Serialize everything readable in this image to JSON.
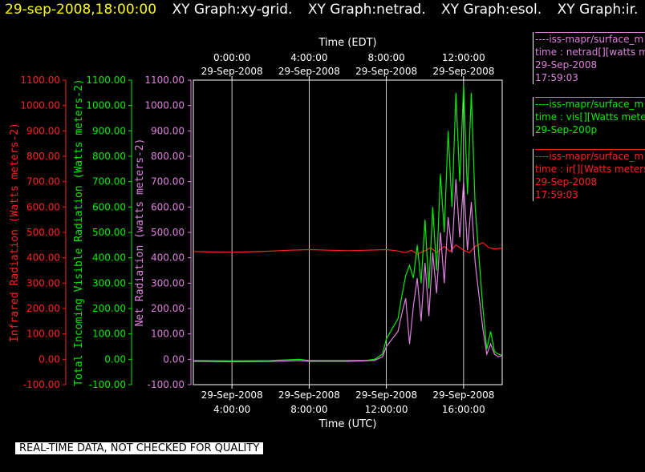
{
  "title_bar": {
    "timestamp": "29-sep-2008,18:00:00",
    "graphs": [
      "XY Graph:xy-grid.",
      "XY Graph:netrad.",
      "XY Graph:esol.",
      "XY Graph:ir."
    ]
  },
  "legend": [
    {
      "line1": "----iss-mapr/surface_m",
      "line2": "time : netrad[][watts m",
      "line3": "29-Sep-2008",
      "line4": "17:59:03",
      "color": "#e080e0"
    },
    {
      "line1": "----iss-mapr/surface_m",
      "line2": "time : vis[][Watts mete",
      "line3": "29-Sep-200p",
      "line4": "",
      "color": "#00ee00"
    },
    {
      "line1": "----iss-mapr/surface_m",
      "line2": "time : ir[][Watts meters",
      "line3": "29-Sep-2008",
      "line4": "17:59:03",
      "color": "#ff2020"
    }
  ],
  "quality_note": "REAL-TIME DATA, NOT CHECKED FOR QUALITY",
  "chart_data": {
    "type": "line",
    "xlabel": "Time (UTC)",
    "top_xlabel": "Time (EDT)",
    "x_domain_hours_utc": [
      2.0,
      18.0
    ],
    "bottom_ticks": [
      {
        "x": 4,
        "line1": "29-Sep-2008",
        "line2": "4:00:00"
      },
      {
        "x": 8,
        "line1": "29-Sep-2008",
        "line2": "8:00:00"
      },
      {
        "x": 12,
        "line1": "29-Sep-2008",
        "line2": "12:00:00"
      },
      {
        "x": 16,
        "line1": "29-Sep-2008",
        "line2": "16:00:00"
      }
    ],
    "top_ticks": [
      {
        "x": 4,
        "line1": "0:00:00",
        "line2": "29-Sep-2008"
      },
      {
        "x": 8,
        "line1": "4:00:00",
        "line2": "29-Sep-2008"
      },
      {
        "x": 12,
        "line1": "8:00:00",
        "line2": "29-Sep-2008"
      },
      {
        "x": 16,
        "line1": "12:00:00",
        "line2": "29-Sep-2008"
      }
    ],
    "ylim": [
      -100,
      1100
    ],
    "y_ticks": [
      -100,
      0,
      100,
      200,
      300,
      400,
      500,
      600,
      700,
      800,
      900,
      1000,
      1100
    ],
    "axes": [
      {
        "label": "Infrared Radiation (Watts meters-2)",
        "color": "#ff2020",
        "tick_labels": [
          "-100.00",
          "0.00",
          "100.00",
          "200.00",
          "300.00",
          "400.00",
          "500.00",
          "600.00",
          "700.00",
          "800.00",
          "900.00",
          "1000.00",
          "1100.00"
        ]
      },
      {
        "label": "Total Incoming Visible Radiation (Watts meters-2)",
        "color": "#00ee00",
        "tick_labels": [
          "-100.00",
          "0.00",
          "100.00",
          "200.00",
          "300.00",
          "400.00",
          "500.00",
          "600.00",
          "700.00",
          "800.00",
          "900.00",
          "1000.00",
          "1100.00"
        ]
      },
      {
        "label": "Net Radiation (watts meters-2)",
        "color": "#e080e0",
        "tick_labels": [
          "-100.00",
          "0.00",
          "100.00",
          "200.00",
          "300.00",
          "400.00",
          "500.00",
          "600.00",
          "700.00",
          "800.00",
          "900.00",
          "1000.00",
          "1100.00"
        ]
      }
    ],
    "grid": true,
    "series": [
      {
        "name": "ir",
        "color": "#ff2020",
        "points": [
          [
            2.0,
            425
          ],
          [
            3.0,
            423
          ],
          [
            4.0,
            422
          ],
          [
            5.0,
            424
          ],
          [
            6.0,
            426
          ],
          [
            7.0,
            430
          ],
          [
            8.0,
            432
          ],
          [
            9.0,
            430
          ],
          [
            10.0,
            428
          ],
          [
            11.0,
            430
          ],
          [
            12.0,
            432
          ],
          [
            12.5,
            428
          ],
          [
            13.0,
            420
          ],
          [
            13.3,
            430
          ],
          [
            13.6,
            415
          ],
          [
            14.0,
            428
          ],
          [
            14.3,
            440
          ],
          [
            14.6,
            420
          ],
          [
            15.0,
            445
          ],
          [
            15.3,
            425
          ],
          [
            15.6,
            450
          ],
          [
            16.0,
            430
          ],
          [
            16.3,
            420
          ],
          [
            16.6,
            445
          ],
          [
            17.0,
            460
          ],
          [
            17.3,
            440
          ],
          [
            17.6,
            435
          ],
          [
            18.0,
            438
          ]
        ]
      },
      {
        "name": "vis",
        "color": "#00ee00",
        "points": [
          [
            2.0,
            -5
          ],
          [
            4.0,
            -6
          ],
          [
            6.0,
            -5
          ],
          [
            7.5,
            0
          ],
          [
            8.0,
            -5
          ],
          [
            10.0,
            -5
          ],
          [
            11.0,
            -4
          ],
          [
            11.4,
            0
          ],
          [
            11.8,
            20
          ],
          [
            12.0,
            80
          ],
          [
            12.3,
            120
          ],
          [
            12.6,
            160
          ],
          [
            12.8,
            250
          ],
          [
            13.0,
            330
          ],
          [
            13.2,
            370
          ],
          [
            13.4,
            320
          ],
          [
            13.6,
            450
          ],
          [
            13.8,
            300
          ],
          [
            14.0,
            550
          ],
          [
            14.2,
            280
          ],
          [
            14.4,
            600
          ],
          [
            14.6,
            350
          ],
          [
            14.8,
            730
          ],
          [
            15.0,
            500
          ],
          [
            15.2,
            900
          ],
          [
            15.4,
            600
          ],
          [
            15.6,
            1050
          ],
          [
            15.8,
            700
          ],
          [
            16.0,
            1080
          ],
          [
            16.2,
            650
          ],
          [
            16.4,
            1050
          ],
          [
            16.6,
            600
          ],
          [
            16.8,
            400
          ],
          [
            17.0,
            200
          ],
          [
            17.2,
            40
          ],
          [
            17.4,
            110
          ],
          [
            17.6,
            30
          ],
          [
            17.8,
            20
          ],
          [
            18.0,
            15
          ]
        ]
      },
      {
        "name": "netrad",
        "color": "#e080e0",
        "points": [
          [
            2.0,
            -8
          ],
          [
            4.0,
            -10
          ],
          [
            6.0,
            -9
          ],
          [
            7.5,
            -5
          ],
          [
            8.0,
            -8
          ],
          [
            10.0,
            -8
          ],
          [
            11.0,
            -6
          ],
          [
            11.4,
            -4
          ],
          [
            11.8,
            10
          ],
          [
            12.0,
            50
          ],
          [
            12.3,
            80
          ],
          [
            12.6,
            110
          ],
          [
            12.8,
            180
          ],
          [
            13.0,
            240
          ],
          [
            13.2,
            60
          ],
          [
            13.4,
            210
          ],
          [
            13.6,
            320
          ],
          [
            13.8,
            150
          ],
          [
            14.0,
            380
          ],
          [
            14.2,
            170
          ],
          [
            14.4,
            420
          ],
          [
            14.6,
            260
          ],
          [
            14.8,
            500
          ],
          [
            15.0,
            300
          ],
          [
            15.2,
            560
          ],
          [
            15.4,
            420
          ],
          [
            15.6,
            710
          ],
          [
            15.8,
            480
          ],
          [
            16.0,
            700
          ],
          [
            16.2,
            430
          ],
          [
            16.4,
            620
          ],
          [
            16.6,
            380
          ],
          [
            16.8,
            250
          ],
          [
            17.0,
            120
          ],
          [
            17.2,
            20
          ],
          [
            17.4,
            60
          ],
          [
            17.6,
            20
          ],
          [
            17.8,
            10
          ],
          [
            18.0,
            15
          ]
        ]
      }
    ]
  }
}
